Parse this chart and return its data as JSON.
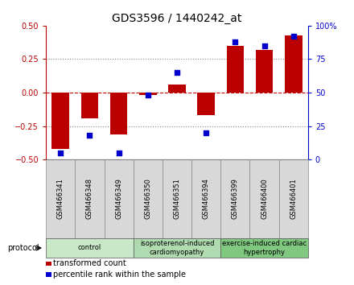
{
  "title": "GDS3596 / 1440242_at",
  "samples": [
    "GSM466341",
    "GSM466348",
    "GSM466349",
    "GSM466350",
    "GSM466351",
    "GSM466394",
    "GSM466399",
    "GSM466400",
    "GSM466401"
  ],
  "transformed_count": [
    -0.42,
    -0.19,
    -0.31,
    -0.02,
    0.06,
    -0.17,
    0.35,
    0.32,
    0.43
  ],
  "percentile_rank": [
    5,
    18,
    5,
    48,
    65,
    20,
    88,
    85,
    92
  ],
  "groups": [
    {
      "label": "control",
      "start": 0,
      "end": 3,
      "color": "#c8e8c8"
    },
    {
      "label": "isoproterenol-induced\ncardiomyopathy",
      "start": 3,
      "end": 6,
      "color": "#b0dbb0"
    },
    {
      "label": "exercise-induced cardiac\nhypertrophy",
      "start": 6,
      "end": 9,
      "color": "#80c880"
    }
  ],
  "bar_color": "#bb0000",
  "dot_color": "#0000cc",
  "ylim_left": [
    -0.5,
    0.5
  ],
  "ylim_right": [
    0,
    100
  ],
  "yticks_left": [
    -0.5,
    -0.25,
    0.0,
    0.25,
    0.5
  ],
  "yticks_right": [
    0,
    25,
    50,
    75,
    100
  ],
  "ytick_labels_right": [
    "0",
    "25",
    "50",
    "75",
    "100%"
  ],
  "hline_color": "#888888",
  "zero_line_color": "#cc0000",
  "bg_color": "#ffffff",
  "sample_box_color": "#d8d8d8",
  "protocol_label": "protocol",
  "legend_items": [
    "transformed count",
    "percentile rank within the sample"
  ]
}
